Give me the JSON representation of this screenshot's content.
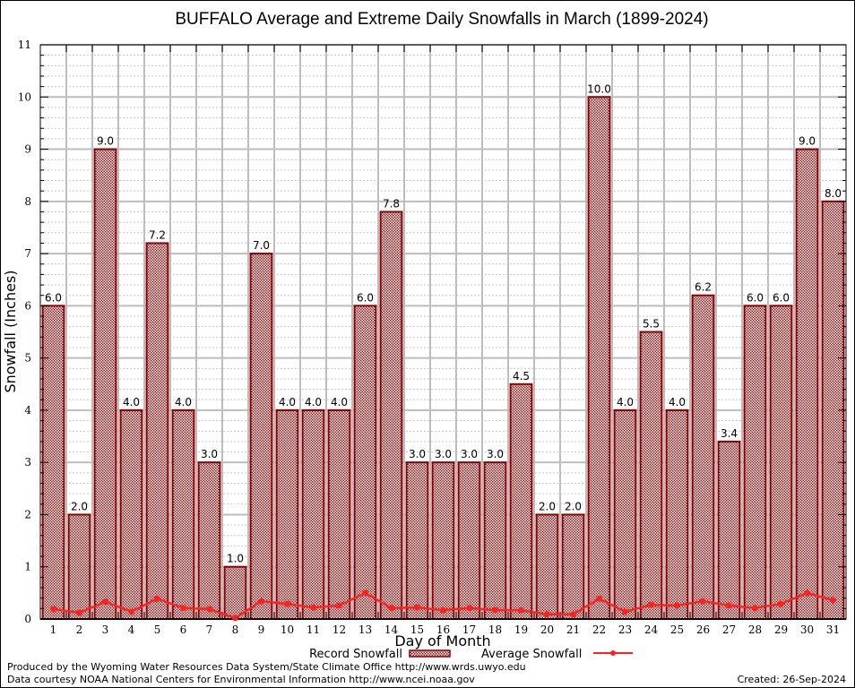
{
  "chart_data": {
    "type": "bar",
    "title": "BUFFALO Average and Extreme Daily Snowfalls in March (1899-2024)",
    "xlabel": "Day of Month",
    "ylabel": "Snowfall (Inches)",
    "ylim": [
      0,
      11
    ],
    "yticks": [
      "0",
      "1",
      "2",
      "3",
      "4",
      "5",
      "6",
      "7",
      "8",
      "9",
      "10",
      "11"
    ],
    "categories": [
      "1",
      "2",
      "3",
      "4",
      "5",
      "6",
      "7",
      "8",
      "9",
      "10",
      "11",
      "12",
      "13",
      "14",
      "15",
      "16",
      "17",
      "18",
      "19",
      "20",
      "21",
      "22",
      "23",
      "24",
      "25",
      "26",
      "27",
      "28",
      "29",
      "30",
      "31"
    ],
    "series": [
      {
        "name": "Record Snowfall",
        "type": "bar",
        "values": [
          6.0,
          2.0,
          9.0,
          4.0,
          7.2,
          4.0,
          3.0,
          1.0,
          7.0,
          4.0,
          4.0,
          4.0,
          6.0,
          7.8,
          3.0,
          3.0,
          3.0,
          3.0,
          4.5,
          2.0,
          2.0,
          10.0,
          4.0,
          5.5,
          4.0,
          6.2,
          3.4,
          6.0,
          6.0,
          9.0,
          8.0
        ],
        "labels": [
          "6.0",
          "2.0",
          "9.0",
          "4.0",
          "7.2",
          "4.0",
          "3.0",
          "1.0",
          "7.0",
          "4.0",
          "4.0",
          "4.0",
          "6.0",
          "7.8",
          "3.0",
          "3.0",
          "3.0",
          "3.0",
          "4.5",
          "2.0",
          "2.0",
          "10.0",
          "4.0",
          "5.5",
          "4.0",
          "6.2",
          "3.4",
          "6.0",
          "6.0",
          "9.0",
          "8.0"
        ],
        "color": "#8b0000"
      },
      {
        "name": "Average Snowfall",
        "type": "line",
        "values": [
          0.19,
          0.12,
          0.33,
          0.14,
          0.39,
          0.21,
          0.19,
          0.02,
          0.34,
          0.29,
          0.22,
          0.26,
          0.5,
          0.21,
          0.22,
          0.17,
          0.21,
          0.17,
          0.17,
          0.09,
          0.09,
          0.39,
          0.14,
          0.27,
          0.26,
          0.34,
          0.26,
          0.21,
          0.29,
          0.5,
          0.36
        ],
        "color": "#ff2020"
      }
    ],
    "grid": true,
    "legend": "bottom-center"
  },
  "footer": {
    "line1": "Produced by the Wyoming Water Resources Data System/State Climate Office http://www.wrds.uwyo.edu",
    "line2": "Data courtesy NOAA National Centers for Environmental Information http://www.ncei.noaa.gov",
    "created": "Created: 26-Sep-2024"
  }
}
